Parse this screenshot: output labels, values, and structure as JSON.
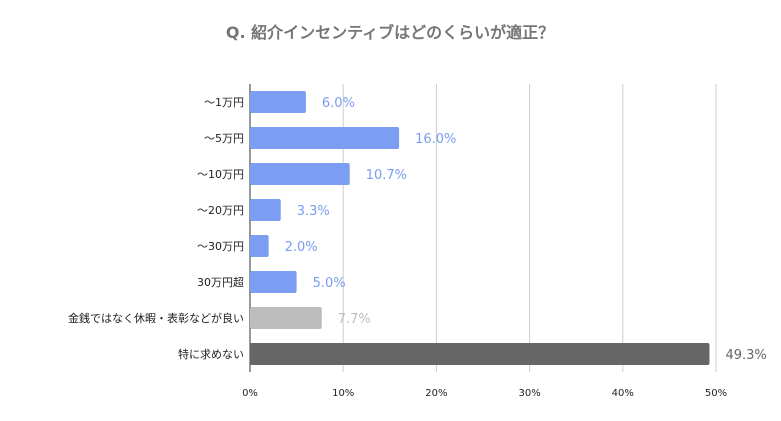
{
  "chart_data": {
    "type": "bar",
    "orientation": "horizontal",
    "title": "Q. 紹介インセンティブはどのくらいが適正？",
    "categories": [
      "〜1万円",
      "〜5万円",
      "〜10万円",
      "〜20万円",
      "〜30万円",
      "30万円超",
      "金銭ではなく休暇・表彰などが良い",
      "特に求めない"
    ],
    "values": [
      6.0,
      16.0,
      10.7,
      3.3,
      2.0,
      5.0,
      7.7,
      49.3
    ],
    "data_labels": [
      "6.0%",
      "16.0%",
      "10.7%",
      "3.3%",
      "2.0%",
      "5.0%",
      "7.7%",
      "49.3%"
    ],
    "bar_colors": [
      "#7b9df2",
      "#7b9df2",
      "#7b9df2",
      "#7b9df2",
      "#7b9df2",
      "#7b9df2",
      "#bdbdbd",
      "#666666"
    ],
    "label_colors": [
      "#7b9df2",
      "#7b9df2",
      "#7b9df2",
      "#7b9df2",
      "#7b9df2",
      "#7b9df2",
      "#bdbdbd",
      "#666666"
    ],
    "xlim": [
      0,
      50
    ],
    "xticks": [
      0,
      10,
      20,
      30,
      40,
      50
    ],
    "xtick_labels": [
      "0%",
      "10%",
      "20%",
      "30%",
      "40%",
      "50%"
    ],
    "grid": true,
    "legend": "none",
    "xlabel": "",
    "ylabel": ""
  }
}
